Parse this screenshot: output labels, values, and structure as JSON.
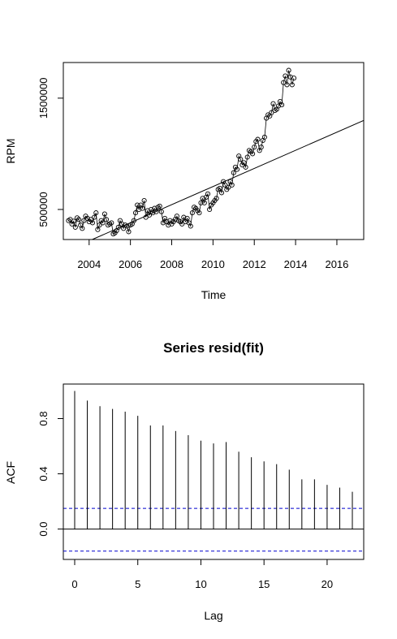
{
  "chart_data": [
    {
      "type": "line",
      "title": "",
      "xlabel": "Time",
      "ylabel": "RPM",
      "xlim": [
        2002.75,
        2017.3
      ],
      "ylim": [
        230000,
        1820000
      ],
      "x_ticks": [
        2004,
        2006,
        2008,
        2010,
        2012,
        2014,
        2016
      ],
      "x_tick_labels": [
        "2004",
        "2006",
        "2008",
        "2010",
        "2012",
        "2014",
        "2016"
      ],
      "y_ticks": [
        500000,
        1500000
      ],
      "y_tick_labels": [
        "500000",
        "1500000"
      ],
      "series": [
        {
          "style": "points-and-lines",
          "x_start": 2003.0,
          "x_step": 0.0833333,
          "values": [
            400000,
            410000,
            370000,
            395000,
            340000,
            425000,
            410000,
            360000,
            330000,
            400000,
            440000,
            420000,
            390000,
            410000,
            380000,
            430000,
            470000,
            320000,
            360000,
            400000,
            380000,
            460000,
            410000,
            360000,
            370000,
            380000,
            280000,
            290000,
            310000,
            340000,
            400000,
            370000,
            330000,
            360000,
            350000,
            300000,
            360000,
            370000,
            400000,
            470000,
            540000,
            500000,
            540000,
            510000,
            580000,
            430000,
            490000,
            450000,
            500000,
            470000,
            510000,
            480000,
            520000,
            530000,
            480000,
            380000,
            420000,
            390000,
            360000,
            400000,
            370000,
            390000,
            410000,
            440000,
            400000,
            390000,
            370000,
            430000,
            390000,
            420000,
            380000,
            350000,
            470000,
            520000,
            510000,
            490000,
            470000,
            560000,
            600000,
            560000,
            610000,
            640000,
            500000,
            540000,
            560000,
            580000,
            600000,
            680000,
            690000,
            650000,
            750000,
            720000,
            680000,
            700000,
            750000,
            720000,
            830000,
            880000,
            860000,
            980000,
            950000,
            900000,
            920000,
            880000,
            970000,
            1030000,
            1020000,
            1000000,
            1060000,
            1110000,
            1130000,
            1030000,
            1060000,
            1120000,
            1150000,
            1320000,
            1350000,
            1340000,
            1370000,
            1450000,
            1390000,
            1400000,
            1430000,
            1470000,
            1440000,
            1640000,
            1700000,
            1620000,
            1750000,
            1690000,
            1620000,
            1680000
          ]
        },
        {
          "name": "",
          "style": "fitted-line",
          "x": [
            2004.15,
            2017.3
          ],
          "values": [
            230000,
            1300000
          ]
        }
      ]
    },
    {
      "type": "bar",
      "title": "Series  resid(fit)",
      "xlabel": "Lag",
      "ylabel": "ACF",
      "xlim": [
        -0.9,
        22.9
      ],
      "ylim": [
        -0.22,
        1.05
      ],
      "x_ticks": [
        0,
        5,
        10,
        15,
        20
      ],
      "x_tick_labels": [
        "0",
        "5",
        "10",
        "15",
        "20"
      ],
      "y_ticks": [
        0.0,
        0.4,
        0.8
      ],
      "y_tick_labels": [
        "0.0",
        "0.4",
        "0.8"
      ],
      "categories": [
        0,
        1,
        2,
        3,
        4,
        5,
        6,
        7,
        8,
        9,
        10,
        11,
        12,
        13,
        14,
        15,
        16,
        17,
        18,
        19,
        20,
        21,
        22
      ],
      "values": [
        1.0,
        0.93,
        0.89,
        0.87,
        0.85,
        0.82,
        0.75,
        0.75,
        0.71,
        0.68,
        0.64,
        0.62,
        0.63,
        0.56,
        0.52,
        0.49,
        0.47,
        0.43,
        0.36,
        0.36,
        0.32,
        0.3,
        0.27
      ],
      "confidence_band": [
        0.15,
        -0.16
      ],
      "confidence_color": "#0000CD"
    }
  ]
}
